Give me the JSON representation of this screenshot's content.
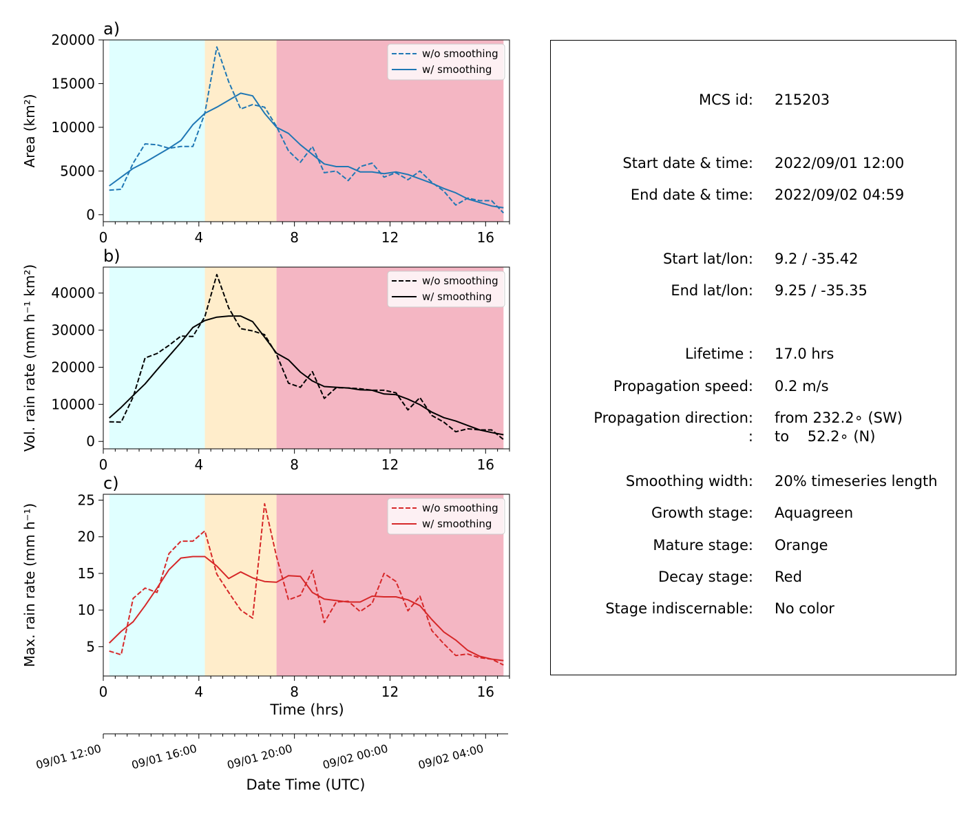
{
  "panels": [
    {
      "letter": "a)",
      "ylabel": "Area  (km²)",
      "color": "#1f77b4",
      "ylim": [
        -800,
        20000
      ],
      "yticks": [
        0,
        5000,
        10000,
        15000,
        20000
      ],
      "legend": [
        "w/o smoothing",
        "w/ smoothing"
      ],
      "xlabel": ""
    },
    {
      "letter": "b)",
      "ylabel": "Vol. rain rate (mm h⁻¹ km²)",
      "color": "#000000",
      "ylim": [
        -2000,
        47000
      ],
      "yticks": [
        0,
        10000,
        20000,
        30000,
        40000
      ],
      "legend": [
        "w/o smoothing",
        "w/ smoothing"
      ],
      "xlabel": ""
    },
    {
      "letter": "c)",
      "ylabel": "Max. rain rate  (mm h⁻¹)",
      "color": "#d62728",
      "ylim": [
        1,
        25.8
      ],
      "yticks": [
        5,
        10,
        15,
        20,
        25
      ],
      "legend": [
        "w/o smoothing",
        "w/ smoothing"
      ],
      "xlabel": "Time (hrs)"
    }
  ],
  "stages": [
    {
      "name": "growth",
      "from": 0.25,
      "to": 4.25,
      "color": "#e0ffff"
    },
    {
      "name": "mature",
      "from": 4.25,
      "to": 7.25,
      "color": "#ffedcb"
    },
    {
      "name": "decay",
      "from": 7.25,
      "to": 16.75,
      "color": "#f4b6c3"
    }
  ],
  "x_axis": {
    "xlim": [
      0,
      17
    ],
    "ticks": [
      0,
      4,
      8,
      12,
      16
    ],
    "minor_step": 0.5
  },
  "date_axis": {
    "ticks": [
      "09/01 12:00",
      "09/01 16:00",
      "09/01 20:00",
      "09/02 00:00",
      "09/02 04:00"
    ],
    "label": "Date Time (UTC)"
  },
  "chart_data": [
    {
      "type": "line",
      "title": "a)",
      "xlabel": "",
      "ylabel": "Area  (km²)",
      "ylim": [
        -800,
        20000
      ],
      "x": [
        0.25,
        0.75,
        1.25,
        1.75,
        2.25,
        2.75,
        3.25,
        3.75,
        4.25,
        4.75,
        5.25,
        5.75,
        6.25,
        6.75,
        7.25,
        7.75,
        8.25,
        8.75,
        9.25,
        9.75,
        10.25,
        10.75,
        11.25,
        11.75,
        12.25,
        12.75,
        13.25,
        13.75,
        14.25,
        14.75,
        15.25,
        15.75,
        16.25,
        16.75
      ],
      "series": [
        {
          "name": "w/o smoothing",
          "style": "dashed",
          "values": [
            2800,
            2900,
            5900,
            8100,
            8000,
            7600,
            7800,
            7800,
            11600,
            19200,
            15200,
            12100,
            12600,
            12300,
            10100,
            7300,
            6000,
            7800,
            4800,
            5000,
            3900,
            5500,
            5900,
            4300,
            4800,
            4000,
            5000,
            3700,
            2700,
            1100,
            1900,
            1600,
            1600,
            200
          ]
        },
        {
          "name": "w/ smoothing",
          "style": "solid",
          "values": [
            3300,
            4300,
            5300,
            6000,
            6800,
            7600,
            8500,
            10300,
            11600,
            12300,
            13100,
            13900,
            13600,
            11600,
            10000,
            9300,
            8000,
            6900,
            5800,
            5500,
            5500,
            4900,
            4900,
            4700,
            4900,
            4600,
            4100,
            3600,
            3000,
            2500,
            1800,
            1400,
            1000,
            800
          ]
        }
      ]
    },
    {
      "type": "line",
      "title": "b)",
      "xlabel": "",
      "ylabel": "Vol. rain rate (mm h⁻¹ km²)",
      "ylim": [
        -2000,
        47000
      ],
      "x": [
        0.25,
        0.75,
        1.25,
        1.75,
        2.25,
        2.75,
        3.25,
        3.75,
        4.25,
        4.75,
        5.25,
        5.75,
        6.25,
        6.75,
        7.25,
        7.75,
        8.25,
        8.75,
        9.25,
        9.75,
        10.25,
        10.75,
        11.25,
        11.75,
        12.25,
        12.75,
        13.25,
        13.75,
        14.25,
        14.75,
        15.25,
        15.75,
        16.25,
        16.75
      ],
      "series": [
        {
          "name": "w/o smoothing",
          "style": "dashed",
          "values": [
            5300,
            5200,
            12000,
            22500,
            23700,
            25900,
            28400,
            28300,
            33600,
            45000,
            36000,
            30400,
            29800,
            28800,
            23500,
            15700,
            14600,
            18800,
            11600,
            14500,
            14400,
            14200,
            13800,
            13800,
            13100,
            8500,
            11800,
            7000,
            5200,
            2600,
            3400,
            3100,
            3100,
            500
          ]
        },
        {
          "name": "w/ smoothing",
          "style": "solid",
          "values": [
            6300,
            9200,
            12400,
            15500,
            19300,
            23000,
            26700,
            30700,
            32600,
            33500,
            33800,
            33800,
            32300,
            28100,
            23800,
            22000,
            18700,
            16300,
            14800,
            14600,
            14400,
            13900,
            13800,
            12800,
            12600,
            11400,
            9900,
            7900,
            6400,
            5500,
            4300,
            3100,
            2400,
            1800
          ]
        }
      ]
    },
    {
      "type": "line",
      "title": "c)",
      "xlabel": "Time (hrs)",
      "ylabel": "Max. rain rate  (mm h⁻¹)",
      "ylim": [
        1,
        25.8
      ],
      "x": [
        0.25,
        0.75,
        1.25,
        1.75,
        2.25,
        2.75,
        3.25,
        3.75,
        4.25,
        4.75,
        5.25,
        5.75,
        6.25,
        6.75,
        7.25,
        7.75,
        8.25,
        8.75,
        9.25,
        9.75,
        10.25,
        10.75,
        11.25,
        11.75,
        12.25,
        12.75,
        13.25,
        13.75,
        14.25,
        14.75,
        15.25,
        15.75,
        16.25,
        16.75
      ],
      "series": [
        {
          "name": "w/o smoothing",
          "style": "dashed",
          "values": [
            4.4,
            3.9,
            11.6,
            13.0,
            12.4,
            17.7,
            19.4,
            19.4,
            20.8,
            14.9,
            12.4,
            10.0,
            8.9,
            24.5,
            17.3,
            11.4,
            12.0,
            15.4,
            8.3,
            11.1,
            11.2,
            9.8,
            10.9,
            15.0,
            13.9,
            9.9,
            11.9,
            7.2,
            5.4,
            3.8,
            4.0,
            3.5,
            3.3,
            2.5
          ]
        },
        {
          "name": "w/ smoothing",
          "style": "solid",
          "values": [
            5.5,
            7.1,
            8.4,
            10.6,
            13.0,
            15.5,
            17.1,
            17.3,
            17.3,
            16.0,
            14.3,
            15.2,
            14.4,
            13.9,
            13.8,
            14.7,
            14.6,
            12.4,
            11.5,
            11.3,
            11.1,
            11.1,
            11.9,
            11.8,
            11.8,
            11.4,
            10.6,
            8.7,
            7.0,
            5.9,
            4.5,
            3.7,
            3.3,
            3.1
          ]
        }
      ]
    }
  ],
  "info": [
    {
      "key": "MCS id:",
      "value": "215203"
    },
    {
      "key": "Start date & time:",
      "value": "2022/09/01 12:00"
    },
    {
      "key": "End date & time:",
      "value": "2022/09/02 04:59"
    },
    {
      "key": "Start lat/lon:",
      "value": "9.2 / -35.42"
    },
    {
      "key": "End lat/lon:",
      "value": "9.25 / -35.35"
    },
    {
      "key": "Lifetime :",
      "value": "17.0 hrs"
    },
    {
      "key": "Propagation speed:",
      "value": "0.2 m/s"
    },
    {
      "key": "Propagation direction:",
      "value": "from 232.2∘ (SW)"
    },
    {
      "key": ":",
      "value": "to    52.2∘ (N)"
    },
    {
      "key": "Smoothing width:",
      "value": "20% timeseries length"
    },
    {
      "key": "Growth stage:",
      "value": "Aquagreen"
    },
    {
      "key": "Mature stage:",
      "value": "Orange"
    },
    {
      "key": "Decay stage:",
      "value": "Red"
    },
    {
      "key": "Stage indiscernable:",
      "value": "No color"
    }
  ]
}
